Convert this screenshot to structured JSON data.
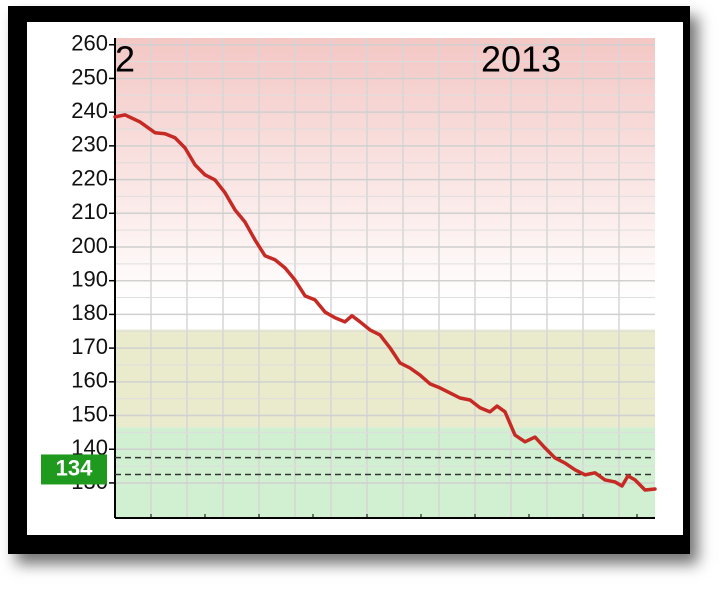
{
  "chart_data": {
    "type": "line",
    "x": [
      0,
      10,
      25,
      40,
      50,
      60,
      70,
      80,
      90,
      100,
      110,
      120,
      130,
      140,
      150,
      160,
      170,
      180,
      190,
      200,
      210,
      220,
      230,
      237,
      245,
      255,
      265,
      275,
      285,
      295,
      305,
      315,
      325,
      335,
      345,
      355,
      365,
      375,
      382,
      390,
      400,
      410,
      420,
      430,
      440,
      450,
      460,
      470,
      480,
      490,
      500,
      507,
      513,
      520,
      530,
      540
    ],
    "series": [
      {
        "color": "#c62a25",
        "values": [
          238.6,
          239.2,
          237.1,
          233.9,
          233.6,
          232.4,
          229.4,
          224.4,
          221.4,
          219.9,
          216.1,
          211.0,
          207.4,
          202.1,
          197.4,
          196.2,
          193.8,
          190.2,
          185.5,
          184.3,
          180.7,
          179.0,
          177.8,
          179.6,
          177.8,
          175.4,
          173.9,
          170.1,
          165.6,
          164.1,
          162.0,
          159.4,
          158.2,
          156.7,
          155.2,
          154.6,
          152.3,
          151.1,
          152.8,
          151.1,
          144.2,
          142.2,
          143.6,
          140.4,
          137.4,
          135.9,
          133.9,
          132.4,
          133.0,
          130.9,
          130.3,
          129.1,
          132.1,
          130.9,
          127.9,
          128.2
        ]
      }
    ],
    "xlim": [
      0,
      540
    ],
    "ylim": [
      119.6,
      262
    ],
    "yticks": [
      130,
      140,
      150,
      160,
      170,
      180,
      190,
      200,
      210,
      220,
      230,
      240,
      250,
      260
    ],
    "grid": true,
    "year_labels": [
      {
        "text": "2",
        "x": 0
      },
      {
        "text": "2013",
        "x": 366
      }
    ],
    "bands": [
      {
        "from": 146.5,
        "to": 175.5,
        "color": "#e6e6c4"
      },
      {
        "from": 119.6,
        "to": 146.5,
        "color": "#c9ecc9"
      }
    ],
    "target_lines": [
      137.5,
      132.5
    ],
    "current": 134,
    "current_color": "#1f9a1f"
  }
}
